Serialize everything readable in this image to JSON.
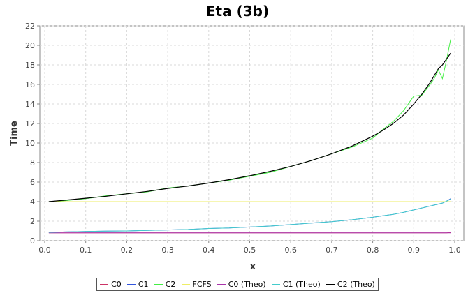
{
  "chart_data": {
    "type": "line",
    "title": "Eta (3b)",
    "xlabel": "x",
    "ylabel": "Time",
    "xlim": [
      0.0,
      1.0
    ],
    "ylim": [
      0,
      22
    ],
    "xticks": [
      "0,0",
      "0,1",
      "0,2",
      "0,3",
      "0,4",
      "0,5",
      "0,6",
      "0,7",
      "0,8",
      "0,9",
      "1,0"
    ],
    "yticks": [
      "0",
      "2",
      "4",
      "6",
      "8",
      "10",
      "12",
      "14",
      "16",
      "18",
      "20",
      "22"
    ],
    "grid": true,
    "legend_position": "bottom",
    "x": [
      0.01,
      0.05,
      0.1,
      0.15,
      0.2,
      0.25,
      0.3,
      0.35,
      0.4,
      0.45,
      0.5,
      0.55,
      0.6,
      0.65,
      0.7,
      0.75,
      0.8,
      0.825,
      0.85,
      0.875,
      0.9,
      0.92,
      0.94,
      0.95,
      0.96,
      0.97,
      0.98,
      0.99
    ],
    "series": [
      {
        "name": "C0",
        "color": "#cc3366",
        "values": [
          0.8,
          0.8,
          0.8,
          0.8,
          0.8,
          0.8,
          0.8,
          0.8,
          0.8,
          0.8,
          0.8,
          0.8,
          0.8,
          0.8,
          0.8,
          0.8,
          0.8,
          0.8,
          0.8,
          0.8,
          0.8,
          0.8,
          0.8,
          0.8,
          0.8,
          0.8,
          0.8,
          0.85
        ]
      },
      {
        "name": "C1",
        "color": "#3355dd",
        "values": [
          0.85,
          0.9,
          0.95,
          0.98,
          1.0,
          1.05,
          1.1,
          1.15,
          1.25,
          1.3,
          1.4,
          1.5,
          1.65,
          1.8,
          1.95,
          2.15,
          2.4,
          2.55,
          2.7,
          2.9,
          3.15,
          3.35,
          3.55,
          3.65,
          3.75,
          3.85,
          4.05,
          4.3
        ]
      },
      {
        "name": "C2",
        "color": "#44ee44",
        "values": [
          4.0,
          4.1,
          4.3,
          4.6,
          4.8,
          5.0,
          5.4,
          5.6,
          5.9,
          6.2,
          6.6,
          7.0,
          7.6,
          8.2,
          8.9,
          9.6,
          10.5,
          11.4,
          12.2,
          13.3,
          14.8,
          14.9,
          16.0,
          16.6,
          17.5,
          16.6,
          18.5,
          20.6
        ]
      },
      {
        "name": "FCFS",
        "color": "#eeee66",
        "values": [
          4.0,
          4.0,
          4.0,
          4.0,
          4.0,
          4.0,
          4.0,
          4.0,
          4.0,
          4.0,
          4.0,
          4.0,
          4.0,
          4.0,
          4.0,
          4.0,
          4.0,
          4.0,
          4.0,
          4.0,
          4.0,
          4.0,
          4.0,
          4.0,
          4.0,
          4.0,
          4.0,
          4.0
        ]
      },
      {
        "name": "C0 (Theo)",
        "color": "#aa33aa",
        "values": [
          0.8,
          0.8,
          0.8,
          0.8,
          0.8,
          0.8,
          0.8,
          0.8,
          0.8,
          0.8,
          0.8,
          0.8,
          0.8,
          0.8,
          0.8,
          0.8,
          0.8,
          0.8,
          0.8,
          0.8,
          0.8,
          0.8,
          0.8,
          0.8,
          0.8,
          0.8,
          0.8,
          0.8
        ]
      },
      {
        "name": "C1 (Theo)",
        "color": "#44cccc",
        "values": [
          0.85,
          0.9,
          0.95,
          0.98,
          1.0,
          1.05,
          1.1,
          1.15,
          1.25,
          1.3,
          1.4,
          1.5,
          1.65,
          1.8,
          1.95,
          2.15,
          2.4,
          2.55,
          2.7,
          2.9,
          3.15,
          3.35,
          3.55,
          3.65,
          3.75,
          3.85,
          4.05,
          4.25
        ]
      },
      {
        "name": "C2 (Theo)",
        "color": "#000000",
        "values": [
          4.0,
          4.15,
          4.35,
          4.55,
          4.8,
          5.05,
          5.35,
          5.6,
          5.9,
          6.25,
          6.65,
          7.1,
          7.6,
          8.2,
          8.9,
          9.7,
          10.7,
          11.3,
          12.0,
          12.85,
          14.0,
          15.0,
          16.2,
          16.9,
          17.6,
          18.0,
          18.6,
          19.2
        ]
      }
    ]
  }
}
